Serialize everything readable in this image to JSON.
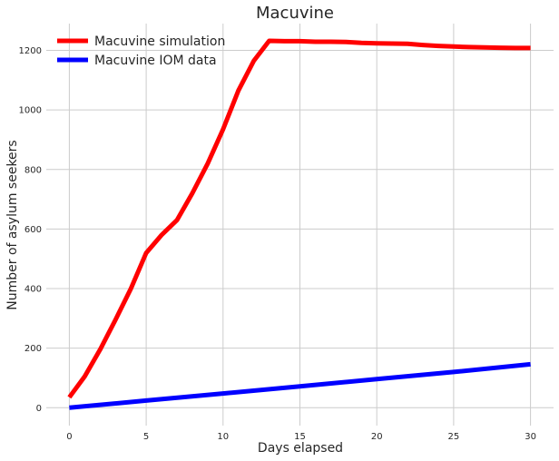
{
  "chart_data": {
    "type": "line",
    "title": "Macuvine",
    "xlabel": "Days elapsed",
    "ylabel": "Number of asylum seekers",
    "xlim": [
      -1.5,
      31.5
    ],
    "ylim": [
      -60,
      1290
    ],
    "xticks": [
      0,
      5,
      10,
      15,
      20,
      25,
      30
    ],
    "yticks": [
      0,
      200,
      400,
      600,
      800,
      1000,
      1200
    ],
    "grid": true,
    "legend_position": "top-left",
    "series": [
      {
        "name": "Macuvine simulation",
        "color": "#ff0000",
        "x": [
          0,
          1,
          2,
          3,
          4,
          5,
          6,
          7,
          8,
          9,
          10,
          11,
          12,
          13,
          14,
          15,
          16,
          17,
          18,
          19,
          20,
          21,
          22,
          23,
          24,
          25,
          26,
          27,
          28,
          29,
          30
        ],
        "y": [
          35,
          105,
          195,
          295,
          400,
          520,
          580,
          630,
          720,
          820,
          935,
          1065,
          1165,
          1232,
          1231,
          1231,
          1229,
          1229,
          1228,
          1225,
          1224,
          1223,
          1222,
          1218,
          1215,
          1213,
          1211,
          1210,
          1209,
          1208,
          1208
        ]
      },
      {
        "name": "Macuvine IOM data",
        "color": "#0000ff",
        "x": [
          0,
          5,
          10,
          15,
          20,
          25,
          30
        ],
        "y": [
          0,
          24,
          48,
          72,
          96,
          120,
          146
        ]
      }
    ]
  }
}
